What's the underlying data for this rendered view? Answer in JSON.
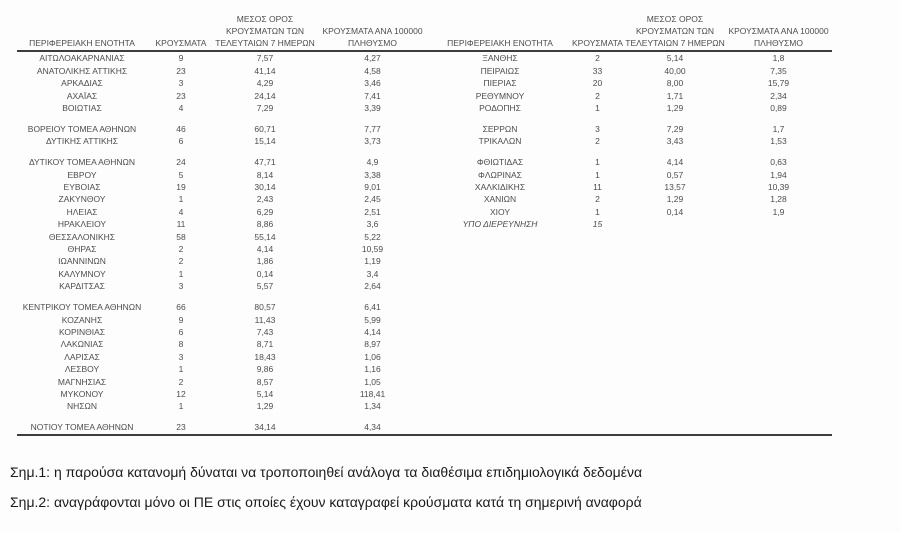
{
  "table": {
    "headers": {
      "region": "ΠΕΡΙΦΕΡΕΙΑΚΗ ΕΝΟΤΗΤΑ",
      "cases": "ΚΡΟΥΣΜΑΤΑ",
      "avg7_lines": [
        "ΜΕΣΟΣ ΟΡΟΣ",
        "ΚΡΟΥΣΜΑΤΩΝ ΤΩΝ",
        "ΤΕΛΕΥΤΑΙΩΝ 7 ΗΜΕΡΩΝ"
      ],
      "per100k_lines": [
        "ΚΡΟΥΣΜΑΤΑ ΑΝΑ 100000",
        "ΠΛΗΘΥΣΜΟ"
      ]
    },
    "left": {
      "rows": [
        {
          "name": "ΑΙΤΩΛΟΑΚΑΡΝΑΝΙΑΣ",
          "cases": "9",
          "avg7": "7,57",
          "per100k": "4,27"
        },
        {
          "name": "ΑΝΑΤΟΛΙΚΗΣ ΑΤΤΙΚΗΣ",
          "cases": "23",
          "avg7": "41,14",
          "per100k": "4,58"
        },
        {
          "name": "ΑΡΚΑΔΙΑΣ",
          "cases": "3",
          "avg7": "4,29",
          "per100k": "3,46"
        },
        {
          "name": "ΑΧΑΪΑΣ",
          "cases": "23",
          "avg7": "24,14",
          "per100k": "7,41"
        },
        {
          "name": "ΒΟΙΩΤΙΑΣ",
          "cases": "4",
          "avg7": "7,29",
          "per100k": "3,39"
        },
        "gap",
        {
          "name": "ΒΟΡΕΙΟΥ ΤΟΜΕΑ ΑΘΗΝΩΝ",
          "cases": "46",
          "avg7": "60,71",
          "per100k": "7,77"
        },
        {
          "name": "ΔΥΤΙΚΗΣ ΑΤΤΙΚΗΣ",
          "cases": "6",
          "avg7": "15,14",
          "per100k": "3,73"
        },
        "gap",
        {
          "name": "ΔΥΤΙΚΟΥ ΤΟΜΕΑ ΑΘΗΝΩΝ",
          "cases": "24",
          "avg7": "47,71",
          "per100k": "4,9"
        },
        {
          "name": "ΕΒΡΟΥ",
          "cases": "5",
          "avg7": "8,14",
          "per100k": "3,38"
        },
        {
          "name": "ΕΥΒΟΙΑΣ",
          "cases": "19",
          "avg7": "30,14",
          "per100k": "9,01"
        },
        {
          "name": "ΖΑΚΥΝΘΟΥ",
          "cases": "1",
          "avg7": "2,43",
          "per100k": "2,45"
        },
        {
          "name": "ΗΛΕΙΑΣ",
          "cases": "4",
          "avg7": "6,29",
          "per100k": "2,51"
        },
        {
          "name": "ΗΡΑΚΛΕΙΟΥ",
          "cases": "11",
          "avg7": "8,86",
          "per100k": "3,6"
        },
        {
          "name": "ΘΕΣΣΑΛΟΝΙΚΗΣ",
          "cases": "58",
          "avg7": "55,14",
          "per100k": "5,22"
        },
        {
          "name": "ΘΗΡΑΣ",
          "cases": "2",
          "avg7": "4,14",
          "per100k": "10,59"
        },
        {
          "name": "ΙΩΑΝΝΙΝΩΝ",
          "cases": "2",
          "avg7": "1,86",
          "per100k": "1,19"
        },
        {
          "name": "ΚΑΛΥΜΝΟΥ",
          "cases": "1",
          "avg7": "0,14",
          "per100k": "3,4"
        },
        {
          "name": "ΚΑΡΔΙΤΣΑΣ",
          "cases": "3",
          "avg7": "5,57",
          "per100k": "2,64"
        },
        "gap",
        {
          "name": "ΚΕΝΤΡΙΚΟΥ ΤΟΜΕΑ ΑΘΗΝΩΝ",
          "cases": "66",
          "avg7": "80,57",
          "per100k": "6,41"
        },
        {
          "name": "ΚΟΖΑΝΗΣ",
          "cases": "9",
          "avg7": "11,43",
          "per100k": "5,99"
        },
        {
          "name": "ΚΟΡΙΝΘΙΑΣ",
          "cases": "6",
          "avg7": "7,43",
          "per100k": "4,14"
        },
        {
          "name": "ΛΑΚΩΝΙΑΣ",
          "cases": "8",
          "avg7": "8,71",
          "per100k": "8,97"
        },
        {
          "name": "ΛΑΡΙΣΑΣ",
          "cases": "3",
          "avg7": "18,43",
          "per100k": "1,06"
        },
        {
          "name": "ΛΕΣΒΟΥ",
          "cases": "1",
          "avg7": "9,86",
          "per100k": "1,16"
        },
        {
          "name": "ΜΑΓΝΗΣΙΑΣ",
          "cases": "2",
          "avg7": "8,57",
          "per100k": "1,05"
        },
        {
          "name": "ΜΥΚΟΝΟΥ",
          "cases": "12",
          "avg7": "5,14",
          "per100k": "118,41"
        },
        {
          "name": "ΝΗΣΩΝ",
          "cases": "1",
          "avg7": "1,29",
          "per100k": "1,34"
        },
        "gap",
        {
          "name": "ΝΟΤΙΟΥ ΤΟΜΕΑ ΑΘΗΝΩΝ",
          "cases": "23",
          "avg7": "34,14",
          "per100k": "4,34"
        }
      ]
    },
    "right": {
      "rows": [
        {
          "name": "ΞΑΝΘΗΣ",
          "cases": "2",
          "avg7": "5,14",
          "per100k": "1,8"
        },
        {
          "name": "ΠΕΙΡΑΙΩΣ",
          "cases": "33",
          "avg7": "40,00",
          "per100k": "7,35"
        },
        {
          "name": "ΠΙΕΡΙΑΣ",
          "cases": "20",
          "avg7": "8,00",
          "per100k": "15,79"
        },
        {
          "name": "ΡΕΘΥΜΝΟΥ",
          "cases": "2",
          "avg7": "1,71",
          "per100k": "2,34"
        },
        {
          "name": "ΡΟΔΟΠΗΣ",
          "cases": "1",
          "avg7": "1,29",
          "per100k": "0,89"
        },
        "gap",
        {
          "name": "ΣΕΡΡΩΝ",
          "cases": "3",
          "avg7": "7,29",
          "per100k": "1,7"
        },
        {
          "name": "ΤΡΙΚΑΛΩΝ",
          "cases": "2",
          "avg7": "3,43",
          "per100k": "1,53"
        },
        "gap",
        {
          "name": "ΦΘΙΩΤΙΔΑΣ",
          "cases": "1",
          "avg7": "4,14",
          "per100k": "0,63"
        },
        {
          "name": "ΦΛΩΡΙΝΑΣ",
          "cases": "1",
          "avg7": "0,57",
          "per100k": "1,94"
        },
        {
          "name": "ΧΑΛΚΙΔΙΚΗΣ",
          "cases": "11",
          "avg7": "13,57",
          "per100k": "10,39"
        },
        {
          "name": "ΧΑΝΙΩΝ",
          "cases": "2",
          "avg7": "1,29",
          "per100k": "1,28"
        },
        {
          "name": "ΧΙΟΥ",
          "cases": "1",
          "avg7": "0,14",
          "per100k": "1,9"
        },
        {
          "name": "ΥΠΟ ΔΙΕΡΕΥΝΗΣΗ",
          "cases": "15",
          "avg7": "",
          "per100k": "",
          "italic": true
        }
      ]
    }
  },
  "notes": [
    "Σημ.1: η παρούσα κατανομή δύναται να τροποποιηθεί ανάλογα τα διαθέσιμα επιδημιολογικά δεδομένα",
    "Σημ.2: αναγράφονται μόνο οι ΠΕ στις οποίες έχουν καταγραφεί κρούσματα κατά τη σημερινή αναφορά"
  ]
}
